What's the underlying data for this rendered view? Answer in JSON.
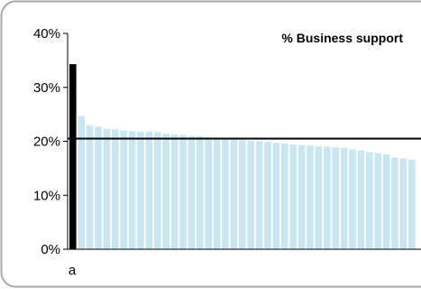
{
  "chart_data": {
    "type": "bar",
    "title": "% Business support",
    "xlabel": "",
    "ylabel": "",
    "ylim": [
      0,
      40
    ],
    "y_ticks": [
      "0%",
      "10%",
      "20%",
      "30%",
      "40%"
    ],
    "y_tick_values": [
      0,
      10,
      20,
      30,
      40
    ],
    "first_category_label": "a",
    "values": [
      34.3,
      24.7,
      23.0,
      22.7,
      22.3,
      22.2,
      22.0,
      21.9,
      21.8,
      21.8,
      21.7,
      21.4,
      21.3,
      21.2,
      21.0,
      21.0,
      20.8,
      20.6,
      20.5,
      20.4,
      20.2,
      20.1,
      20.0,
      19.9,
      19.7,
      19.6,
      19.4,
      19.3,
      19.2,
      19.1,
      19.0,
      18.9,
      18.8,
      18.5,
      18.3,
      18.0,
      17.8,
      17.6,
      17.0,
      16.8,
      16.6
    ],
    "highlight_index": 0,
    "reference_line": 20.5,
    "colors": {
      "highlight": "#000000",
      "bars": "#c8e7f3",
      "reference_line": "#000000",
      "axis": "#000000",
      "frame": "#a8a8a8"
    },
    "grid": false,
    "legend": "none"
  }
}
